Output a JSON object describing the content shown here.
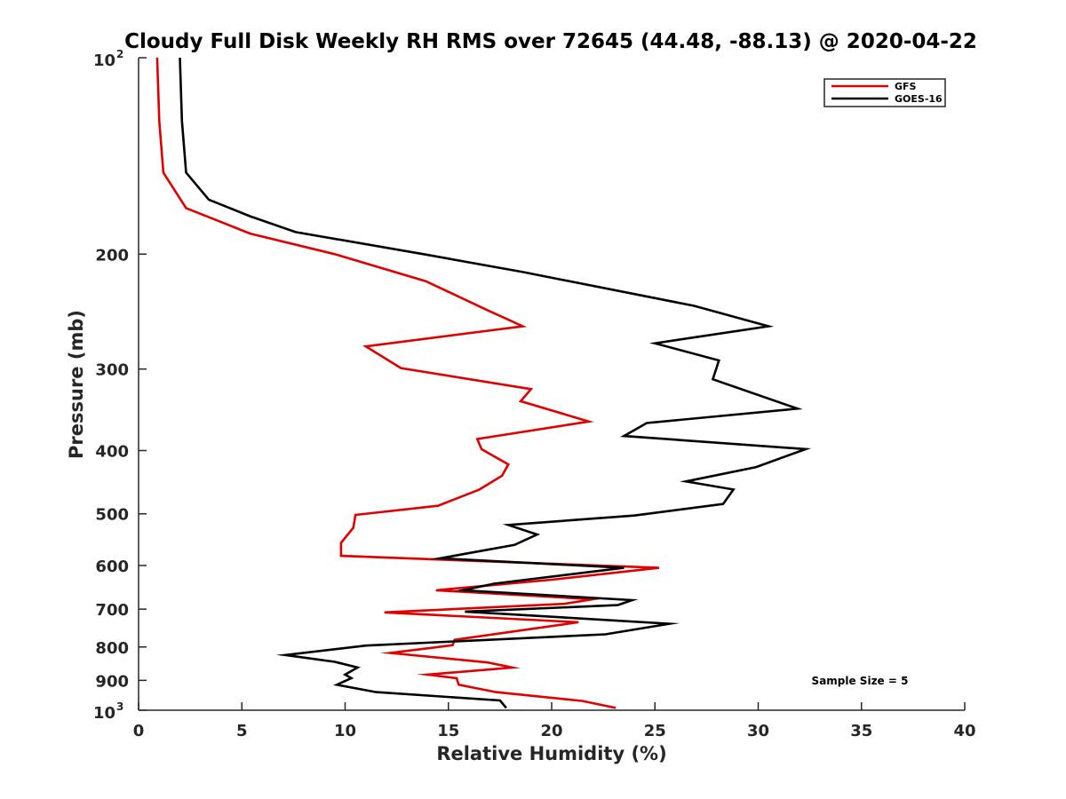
{
  "chart_data": {
    "type": "line",
    "title": "Cloudy Full Disk Weekly RH RMS over 72645 (44.48, -88.13) @ 2020-04-22",
    "xlabel": "Relative Humidity (%)",
    "ylabel": "Pressure (mb)",
    "xlim": [
      0,
      40
    ],
    "ylim": [
      100,
      1000
    ],
    "y_scale": "log",
    "y_reversed": true,
    "x_ticks": [
      "0",
      "5",
      "10",
      "15",
      "20",
      "25",
      "30",
      "35",
      "40"
    ],
    "y_ticks": [
      {
        "value": 100,
        "base": "10",
        "exp": "2"
      },
      {
        "value": 200,
        "label": "200"
      },
      {
        "value": 300,
        "label": "300"
      },
      {
        "value": 400,
        "label": "400"
      },
      {
        "value": 500,
        "label": "500"
      },
      {
        "value": 600,
        "label": "600"
      },
      {
        "value": 700,
        "label": "700"
      },
      {
        "value": 800,
        "label": "800"
      },
      {
        "value": 900,
        "label": "900"
      },
      {
        "value": 1000,
        "base": "10",
        "exp": "3"
      }
    ],
    "grid": false,
    "legend_position": "top-right",
    "annotation": "Sample Size = 5",
    "series": [
      {
        "name": "GFS",
        "color": "#e00000",
        "points": [
          [
            0.9,
            100
          ],
          [
            1.0,
            125
          ],
          [
            1.2,
            150
          ],
          [
            2.3,
            170
          ],
          [
            5.4,
            186
          ],
          [
            9.5,
            200
          ],
          [
            13.9,
            220
          ],
          [
            16.8,
            243
          ],
          [
            18.6,
            258
          ],
          [
            11.0,
            277
          ],
          [
            12.7,
            299
          ],
          [
            19.0,
            322
          ],
          [
            18.5,
            336
          ],
          [
            21.8,
            361
          ],
          [
            16.4,
            384
          ],
          [
            16.6,
            398
          ],
          [
            17.9,
            420
          ],
          [
            17.6,
            437
          ],
          [
            16.5,
            459
          ],
          [
            14.5,
            486
          ],
          [
            10.5,
            502
          ],
          [
            10.4,
            525
          ],
          [
            9.8,
            554
          ],
          [
            9.8,
            580
          ],
          [
            25.2,
            605
          ],
          [
            20.0,
            631
          ],
          [
            14.4,
            655
          ],
          [
            22.0,
            676
          ],
          [
            20.6,
            687
          ],
          [
            11.9,
            708
          ],
          [
            21.3,
            733
          ],
          [
            15.3,
            780
          ],
          [
            15.2,
            795
          ],
          [
            12.2,
            817
          ],
          [
            16.9,
            845
          ],
          [
            18.1,
            860
          ],
          [
            14.0,
            882
          ],
          [
            15.4,
            893
          ],
          [
            15.5,
            914
          ],
          [
            17.3,
            938
          ],
          [
            21.5,
            968
          ],
          [
            23.1,
            992
          ]
        ]
      },
      {
        "name": "GOES-16",
        "color": "#000000",
        "points": [
          [
            2.0,
            100
          ],
          [
            2.1,
            125
          ],
          [
            2.3,
            150
          ],
          [
            3.4,
            165
          ],
          [
            5.4,
            175
          ],
          [
            7.6,
            185
          ],
          [
            13.8,
            200
          ],
          [
            18.6,
            213
          ],
          [
            26.9,
            240
          ],
          [
            30.5,
            258
          ],
          [
            25.0,
            274
          ],
          [
            28.1,
            291
          ],
          [
            27.8,
            311
          ],
          [
            31.9,
            345
          ],
          [
            24.6,
            363
          ],
          [
            23.5,
            380
          ],
          [
            32.3,
            398
          ],
          [
            29.9,
            424
          ],
          [
            26.5,
            446
          ],
          [
            28.8,
            459
          ],
          [
            28.3,
            483
          ],
          [
            24.0,
            503
          ],
          [
            17.9,
            520
          ],
          [
            19.3,
            538
          ],
          [
            18.2,
            558
          ],
          [
            14.6,
            585
          ],
          [
            23.5,
            605
          ],
          [
            17.2,
            640
          ],
          [
            15.7,
            655
          ],
          [
            23.9,
            678
          ],
          [
            23.2,
            690
          ],
          [
            15.8,
            706
          ],
          [
            25.7,
            737
          ],
          [
            22.6,
            765
          ],
          [
            11.0,
            796
          ],
          [
            7.1,
            823
          ],
          [
            9.5,
            843
          ],
          [
            10.6,
            860
          ],
          [
            10.0,
            882
          ],
          [
            10.3,
            893
          ],
          [
            9.6,
            914
          ],
          [
            11.5,
            938
          ],
          [
            17.5,
            966
          ],
          [
            17.8,
            992
          ]
        ]
      }
    ]
  }
}
